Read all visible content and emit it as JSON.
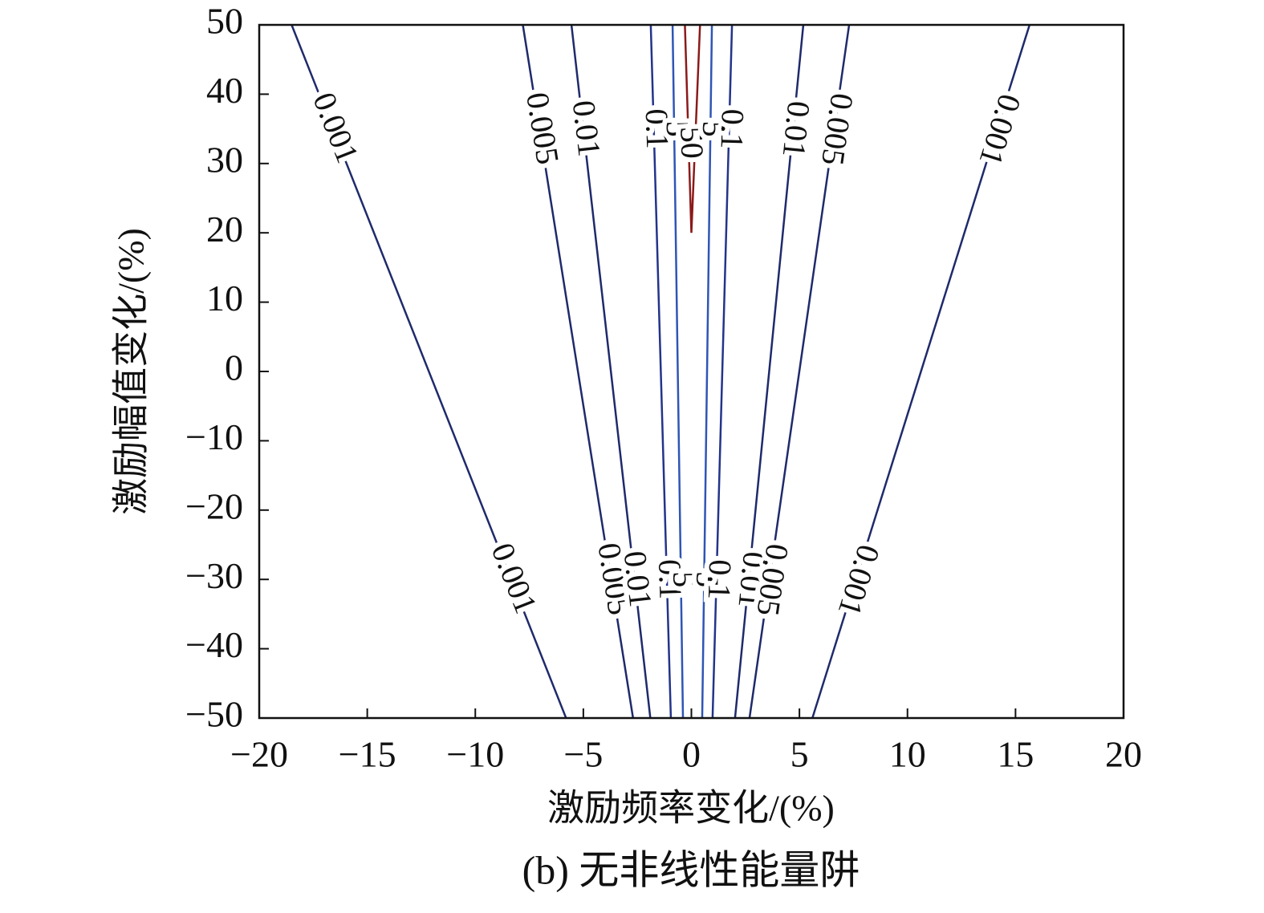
{
  "chart_data": {
    "type": "contour",
    "title": "(b) 无非线性能量阱",
    "x_label": "激励频率变化/(%)",
    "y_label": "激励幅值变化/(%)",
    "xlim": [
      -20,
      20
    ],
    "ylim": [
      -50,
      50
    ],
    "xticks": [
      {
        "value": -20,
        "label": "−20"
      },
      {
        "value": -15,
        "label": "−15"
      },
      {
        "value": -10,
        "label": "−10"
      },
      {
        "value": -5,
        "label": "−5"
      },
      0,
      5,
      10,
      15,
      20
    ],
    "yticks": [
      {
        "value": -50,
        "label": "−50"
      },
      {
        "value": -40,
        "label": "−40"
      },
      {
        "value": -30,
        "label": "−30"
      },
      {
        "value": -20,
        "label": "−20"
      },
      {
        "value": -10,
        "label": "−10"
      },
      0,
      10,
      20,
      30,
      40,
      50
    ],
    "contours": [
      {
        "level": 0.001,
        "color": "#1f2a6b",
        "x": [
          -18.5,
          -5.8
        ],
        "y": [
          50,
          -50
        ]
      },
      {
        "level": 0.005,
        "color": "#1f2a6b",
        "x": [
          -7.8,
          -2.7
        ],
        "y": [
          50,
          -50
        ]
      },
      {
        "level": 0.01,
        "color": "#1f2a6b",
        "x": [
          -5.55,
          -1.9
        ],
        "y": [
          50,
          -50
        ]
      },
      {
        "level": 0.1,
        "color": "#23348a",
        "x": [
          -1.88,
          -0.95
        ],
        "y": [
          50,
          -50
        ]
      },
      {
        "level": 5,
        "color": "#2f55b5",
        "x": [
          -0.87,
          -0.39
        ],
        "y": [
          50,
          -50
        ]
      },
      {
        "level": 50,
        "color": "#8b1a1a",
        "x": [
          -0.3,
          0.0,
          0.4
        ],
        "y": [
          50,
          20,
          50
        ]
      },
      {
        "level": 5,
        "color": "#2f55b5",
        "x": [
          0.95,
          0.5
        ],
        "y": [
          50,
          -50
        ]
      },
      {
        "level": 0.1,
        "color": "#23348a",
        "x": [
          1.88,
          0.98
        ],
        "y": [
          50,
          -50
        ]
      },
      {
        "level": 0.01,
        "color": "#1f2a6b",
        "x": [
          5.18,
          2.02
        ],
        "y": [
          50,
          -50
        ]
      },
      {
        "level": 0.005,
        "color": "#1f2a6b",
        "x": [
          7.3,
          2.69
        ],
        "y": [
          50,
          -50
        ]
      },
      {
        "level": 0.001,
        "color": "#1f2a6b",
        "x": [
          15.65,
          5.6
        ],
        "y": [
          50,
          -50
        ]
      }
    ]
  }
}
